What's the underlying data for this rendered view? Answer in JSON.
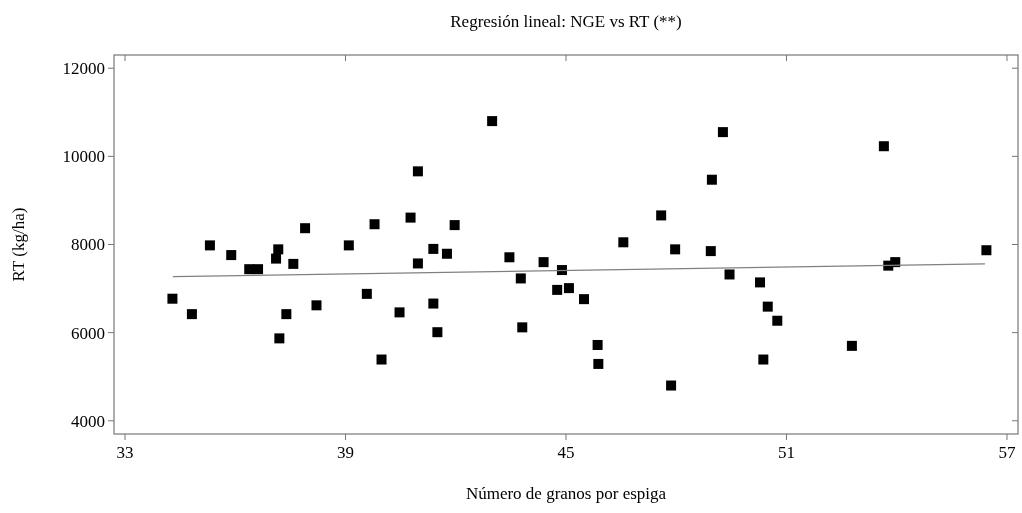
{
  "chart_data": {
    "type": "scatter",
    "title": "Regresión lineal: NGE vs RT (**)",
    "xlabel": "Número de granos por espiga",
    "ylabel": "RT (kg/ha)",
    "xlim": [
      32.7,
      57.3
    ],
    "ylim": [
      3700,
      12300
    ],
    "xticks": [
      33,
      39,
      45,
      51,
      57
    ],
    "yticks": [
      4000,
      6000,
      8000,
      10000,
      12000
    ],
    "grid": false,
    "marker": "square",
    "series": [
      {
        "color": "#000000",
        "x": [
          34.29,
          34.82,
          35.31,
          35.89,
          36.38,
          36.62,
          37.11,
          37.17,
          37.58,
          37.39,
          37.2,
          37.9,
          38.21,
          39.09,
          39.58,
          39.79,
          39.98,
          40.47,
          40.77,
          40.97,
          40.97,
          42.99,
          41.97,
          41.39,
          41.76,
          41.39,
          41.5,
          43.46,
          43.77,
          44.39,
          44.89,
          44.76,
          45.08,
          45.49,
          43.81,
          45.86,
          45.88,
          46.56,
          47.59,
          47.97,
          47.86,
          48.97,
          48.94,
          49.27,
          49.45,
          50.28,
          50.37,
          50.49,
          50.75,
          52.78,
          53.65,
          53.77,
          53.96,
          56.44
        ],
        "values": [
          6770,
          6420,
          7980,
          7760,
          7440,
          7440,
          7680,
          7890,
          7560,
          6420,
          5870,
          8370,
          6620,
          7980,
          6880,
          8460,
          5390,
          6460,
          8610,
          9660,
          7570,
          10800,
          8440,
          7900,
          7790,
          6660,
          6010,
          7710,
          7230,
          7600,
          7420,
          6970,
          7010,
          6760,
          6120,
          5720,
          5290,
          8050,
          8660,
          7890,
          4800,
          9470,
          7850,
          10550,
          7320,
          7140,
          5390,
          6590,
          6270,
          5700,
          10230,
          7520,
          7600,
          7870
        ]
      },
      {
        "type": "line",
        "color": "#808080",
        "x": [
          34.3,
          56.4
        ],
        "values": [
          7270,
          7560
        ],
        "marker": "none",
        "line_style": "solid"
      }
    ]
  }
}
